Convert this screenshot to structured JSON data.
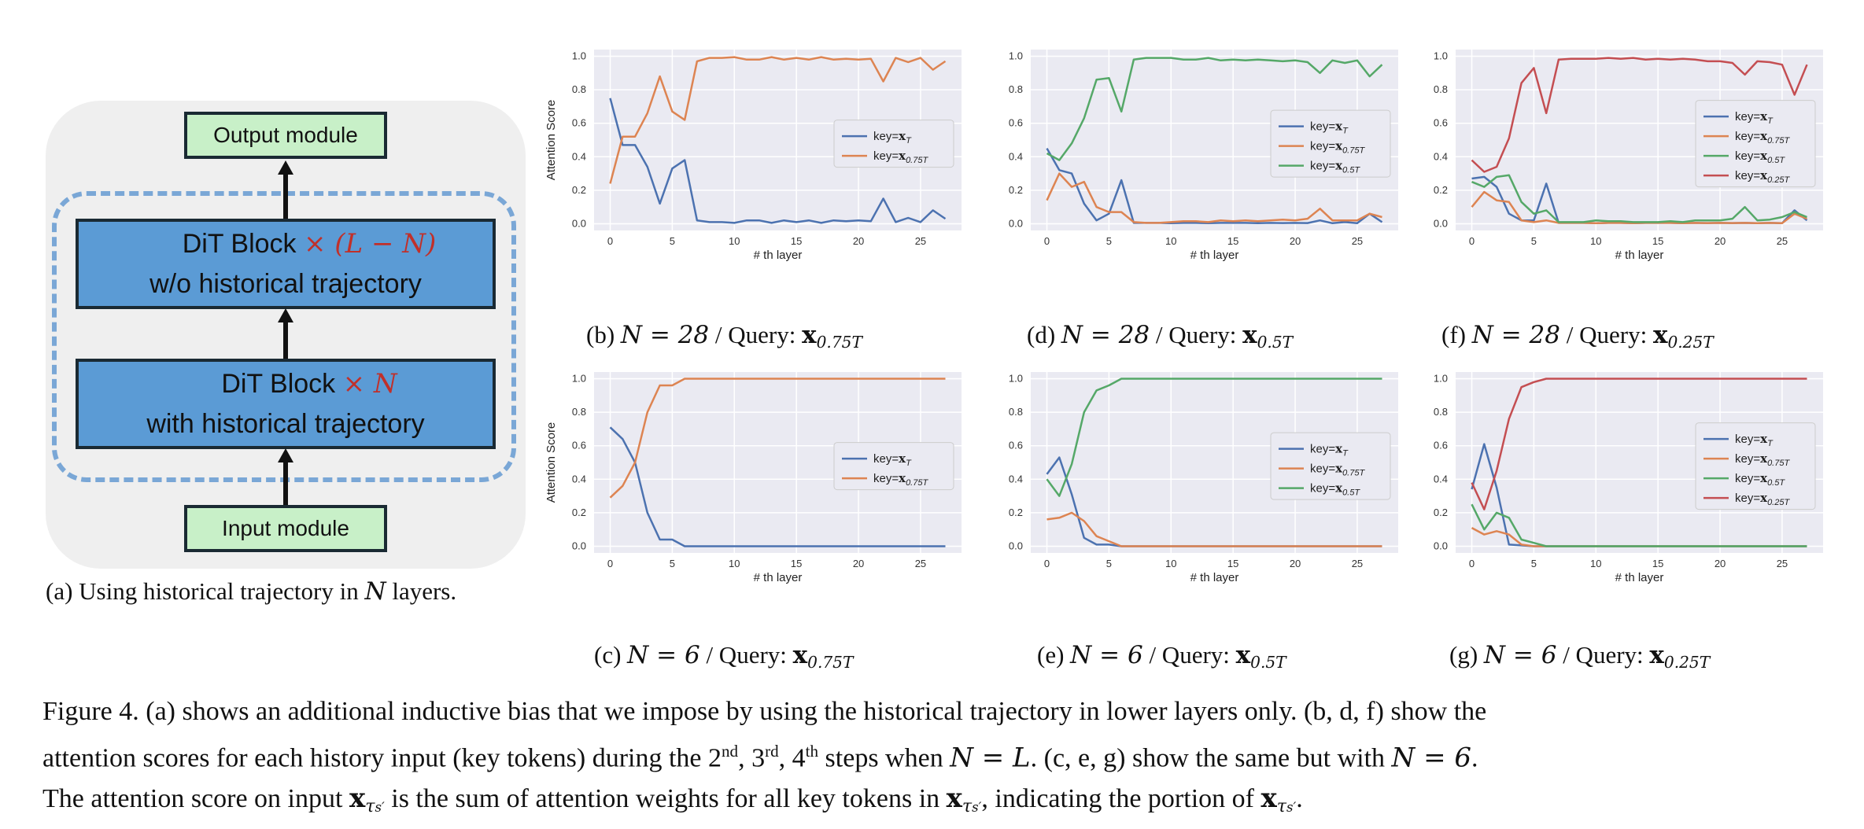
{
  "diagram": {
    "output_label": "Output module",
    "input_label": "Input module",
    "upper_block_title": "DiT Block",
    "upper_block_mult": "× (L − N)",
    "upper_block_sub": "w/o historical trajectory",
    "lower_block_title": "DiT Block",
    "lower_block_mult": "× N",
    "lower_block_sub": "with historical trajectory",
    "colors": {
      "block": "#5b9bd5",
      "module": "#c8f0c8",
      "dashed": "#7aa7d6",
      "mult": "#c0302a"
    },
    "caption": {
      "a": "(a) Using historical trajectory in ",
      "var": "N",
      "b": " layers."
    }
  },
  "chart_common": {
    "xlabel": "# th layer",
    "ylabel": "Attention Score",
    "xticks": [
      0,
      5,
      10,
      15,
      20,
      25
    ],
    "yticks": [
      "0.0",
      "0.2",
      "0.4",
      "0.6",
      "0.8",
      "1.0"
    ],
    "xlim": [
      -1.3,
      28.3
    ],
    "ylim": [
      -0.04,
      1.04
    ],
    "grid": true,
    "colors": {
      "xT": "#4c72b0",
      "x075": "#dd8452",
      "x05": "#55a868",
      "x025": "#c44e52"
    }
  },
  "captions": {
    "b": {
      "pre": "(b) ",
      "n": "N = 28",
      "mid": " / Query: ",
      "q": "x",
      "qs": "0.75T"
    },
    "d": {
      "pre": "(d) ",
      "n": "N = 28",
      "mid": " / Query: ",
      "q": "x",
      "qs": "0.5T"
    },
    "f": {
      "pre": "(f) ",
      "n": "N = 28",
      "mid": " / Query: ",
      "q": "x",
      "qs": "0.25T"
    },
    "c": {
      "pre": "(c) ",
      "n": "N = 6",
      "mid": " / Query: ",
      "q": "x",
      "qs": "0.75T"
    },
    "e": {
      "pre": "(e) ",
      "n": "N = 6",
      "mid": " / Query: ",
      "q": "x",
      "qs": "0.5T"
    },
    "g": {
      "pre": "(g) ",
      "n": "N = 6",
      "mid": " / Query: ",
      "q": "x",
      "qs": "0.25T"
    }
  },
  "legend_labels": {
    "xT": [
      "key=",
      "x",
      "T"
    ],
    "x075": [
      "key=",
      "x",
      "0.75T"
    ],
    "x05": [
      "key=",
      "x",
      "0.5T"
    ],
    "x025": [
      "key=",
      "x",
      "0.25T"
    ]
  },
  "chart_data": [
    {
      "id": "b",
      "type": "line",
      "show_ylabel": true,
      "legend": "center-right",
      "series": [
        {
          "key": "xT",
          "values": [
            0.75,
            0.47,
            0.47,
            0.34,
            0.12,
            0.33,
            0.38,
            0.02,
            0.01,
            0.01,
            0.005,
            0.02,
            0.02,
            0.005,
            0.02,
            0.01,
            0.02,
            0.005,
            0.02,
            0.015,
            0.02,
            0.015,
            0.15,
            0.01,
            0.035,
            0.01,
            0.08,
            0.03
          ]
        },
        {
          "key": "x075",
          "values": [
            0.24,
            0.52,
            0.52,
            0.66,
            0.88,
            0.67,
            0.62,
            0.97,
            0.99,
            0.99,
            0.995,
            0.98,
            0.98,
            0.995,
            0.98,
            0.99,
            0.98,
            0.995,
            0.98,
            0.985,
            0.98,
            0.985,
            0.85,
            0.99,
            0.965,
            0.99,
            0.92,
            0.97
          ]
        }
      ]
    },
    {
      "id": "d",
      "type": "line",
      "show_ylabel": false,
      "legend": "center-right",
      "series": [
        {
          "key": "xT",
          "values": [
            0.45,
            0.32,
            0.3,
            0.12,
            0.02,
            0.06,
            0.26,
            0.005,
            0.005,
            0.005,
            0.003,
            0.005,
            0.005,
            0.003,
            0.005,
            0.005,
            0.005,
            0.003,
            0.005,
            0.004,
            0.005,
            0.004,
            0.02,
            0.003,
            0.01,
            0.003,
            0.06,
            0.01
          ]
        },
        {
          "key": "x075",
          "values": [
            0.14,
            0.3,
            0.22,
            0.25,
            0.1,
            0.07,
            0.07,
            0.01,
            0.005,
            0.005,
            0.01,
            0.015,
            0.015,
            0.01,
            0.02,
            0.015,
            0.02,
            0.015,
            0.02,
            0.025,
            0.02,
            0.03,
            0.09,
            0.02,
            0.02,
            0.02,
            0.06,
            0.04
          ]
        },
        {
          "key": "x05",
          "values": [
            0.42,
            0.38,
            0.48,
            0.63,
            0.86,
            0.87,
            0.67,
            0.98,
            0.99,
            0.99,
            0.99,
            0.98,
            0.98,
            0.99,
            0.975,
            0.98,
            0.975,
            0.98,
            0.975,
            0.97,
            0.975,
            0.965,
            0.9,
            0.975,
            0.96,
            0.975,
            0.88,
            0.95
          ]
        }
      ]
    },
    {
      "id": "f",
      "type": "line",
      "show_ylabel": false,
      "legend": "center-right",
      "series": [
        {
          "key": "xT",
          "values": [
            0.27,
            0.28,
            0.22,
            0.06,
            0.02,
            0.02,
            0.24,
            0.005,
            0.005,
            0.005,
            0.003,
            0.005,
            0.005,
            0.003,
            0.005,
            0.005,
            0.005,
            0.003,
            0.005,
            0.004,
            0.005,
            0.004,
            0.005,
            0.003,
            0.005,
            0.003,
            0.08,
            0.02
          ]
        },
        {
          "key": "x075",
          "values": [
            0.1,
            0.19,
            0.14,
            0.13,
            0.02,
            0.01,
            0.02,
            0.005,
            0.005,
            0.005,
            0.003,
            0.005,
            0.005,
            0.003,
            0.005,
            0.005,
            0.005,
            0.003,
            0.005,
            0.004,
            0.005,
            0.004,
            0.005,
            0.003,
            0.005,
            0.003,
            0.06,
            0.03
          ]
        },
        {
          "key": "x05",
          "values": [
            0.25,
            0.22,
            0.28,
            0.29,
            0.13,
            0.06,
            0.08,
            0.01,
            0.01,
            0.01,
            0.02,
            0.015,
            0.015,
            0.01,
            0.01,
            0.01,
            0.015,
            0.01,
            0.02,
            0.02,
            0.02,
            0.03,
            0.1,
            0.02,
            0.025,
            0.04,
            0.07,
            0.04
          ]
        },
        {
          "key": "x025",
          "values": [
            0.38,
            0.31,
            0.34,
            0.51,
            0.84,
            0.93,
            0.66,
            0.98,
            0.985,
            0.985,
            0.985,
            0.99,
            0.985,
            0.99,
            0.98,
            0.985,
            0.98,
            0.985,
            0.98,
            0.97,
            0.97,
            0.96,
            0.89,
            0.97,
            0.965,
            0.95,
            0.77,
            0.95
          ]
        }
      ]
    },
    {
      "id": "c",
      "type": "line",
      "show_ylabel": true,
      "legend": "center-right",
      "series": [
        {
          "key": "xT",
          "values": [
            0.71,
            0.64,
            0.5,
            0.2,
            0.04,
            0.04,
            0.0,
            0,
            0,
            0,
            0,
            0,
            0,
            0,
            0,
            0,
            0,
            0,
            0,
            0,
            0,
            0,
            0,
            0,
            0,
            0,
            0,
            0
          ]
        },
        {
          "key": "x075",
          "values": [
            0.29,
            0.36,
            0.5,
            0.8,
            0.96,
            0.96,
            1.0,
            1,
            1,
            1,
            1,
            1,
            1,
            1,
            1,
            1,
            1,
            1,
            1,
            1,
            1,
            1,
            1,
            1,
            1,
            1,
            1,
            1
          ]
        }
      ]
    },
    {
      "id": "e",
      "type": "line",
      "show_ylabel": false,
      "legend": "center-right",
      "series": [
        {
          "key": "xT",
          "values": [
            0.43,
            0.53,
            0.31,
            0.05,
            0.01,
            0.01,
            0.0,
            0,
            0,
            0,
            0,
            0,
            0,
            0,
            0,
            0,
            0,
            0,
            0,
            0,
            0,
            0,
            0,
            0,
            0,
            0,
            0,
            0
          ]
        },
        {
          "key": "x075",
          "values": [
            0.16,
            0.17,
            0.2,
            0.15,
            0.06,
            0.03,
            0.0,
            0,
            0,
            0,
            0,
            0,
            0,
            0,
            0,
            0,
            0,
            0,
            0,
            0,
            0,
            0,
            0,
            0,
            0,
            0,
            0,
            0
          ]
        },
        {
          "key": "x05",
          "values": [
            0.4,
            0.3,
            0.49,
            0.8,
            0.93,
            0.96,
            1.0,
            1,
            1,
            1,
            1,
            1,
            1,
            1,
            1,
            1,
            1,
            1,
            1,
            1,
            1,
            1,
            1,
            1,
            1,
            1,
            1,
            1
          ]
        }
      ]
    },
    {
      "id": "g",
      "type": "line",
      "show_ylabel": false,
      "legend": "center-right",
      "series": [
        {
          "key": "xT",
          "values": [
            0.34,
            0.61,
            0.35,
            0.01,
            0.005,
            0.0,
            0,
            0,
            0,
            0,
            0,
            0,
            0,
            0,
            0,
            0,
            0,
            0,
            0,
            0,
            0,
            0,
            0,
            0,
            0,
            0,
            0,
            0
          ]
        },
        {
          "key": "x075",
          "values": [
            0.11,
            0.07,
            0.09,
            0.07,
            0.01,
            0.0,
            0,
            0,
            0,
            0,
            0,
            0,
            0,
            0,
            0,
            0,
            0,
            0,
            0,
            0,
            0,
            0,
            0,
            0,
            0,
            0,
            0,
            0
          ]
        },
        {
          "key": "x05",
          "values": [
            0.25,
            0.1,
            0.2,
            0.17,
            0.04,
            0.02,
            0,
            0,
            0,
            0,
            0,
            0,
            0,
            0,
            0,
            0,
            0,
            0,
            0,
            0,
            0,
            0,
            0,
            0,
            0,
            0,
            0,
            0
          ]
        },
        {
          "key": "x025",
          "values": [
            0.38,
            0.22,
            0.45,
            0.76,
            0.95,
            0.98,
            1,
            1,
            1,
            1,
            1,
            1,
            1,
            1,
            1,
            1,
            1,
            1,
            1,
            1,
            1,
            1,
            1,
            1,
            1,
            1,
            1,
            1
          ]
        }
      ]
    }
  ],
  "figure_caption": {
    "l1": "Figure 4.  (a) shows an additional inductive bias that we impose by using the historical trajectory in lower layers only.  (b, d, f) show the",
    "l2a": "attention scores for each history input (key tokens) during the 2",
    "nd": "nd",
    "l2b": ", 3",
    "rd": "rd",
    "l2c": ", 4",
    "th": "th",
    "l2d": " steps when ",
    "l2e": "N = L",
    "l2f": ". (c, e, g) show the same but with ",
    "l2g": "N = 6",
    "l2h": ".",
    "l3a": "The attention score on input ",
    "l3b": " is the sum of attention weights for all key tokens in ",
    "l3c": ", indicating the portion of ",
    "l3d": ".",
    "x": "x",
    "tau": "τ",
    "s_prime": "s′"
  }
}
